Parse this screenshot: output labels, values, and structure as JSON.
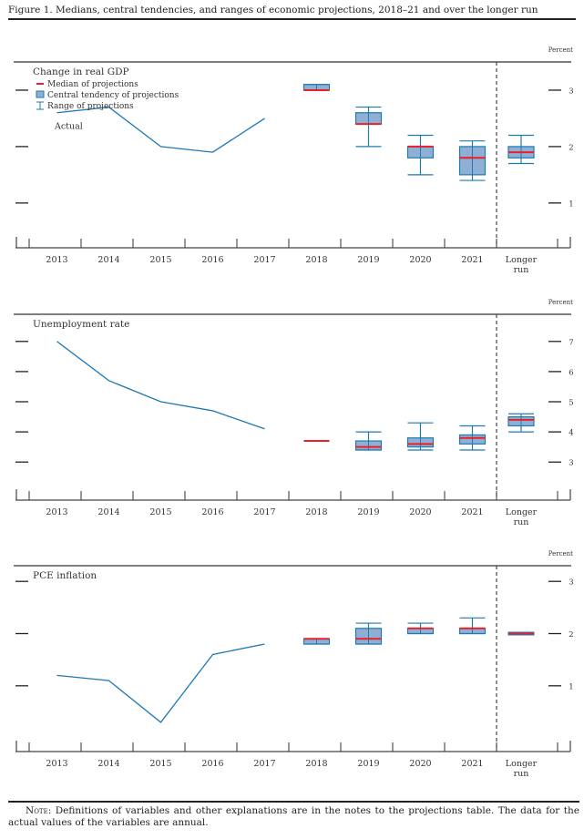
{
  "figure": {
    "title": "Figure 1. Medians, central tendencies, and ranges of economic projections, 2018–21 and over the longer run",
    "note_label": "Note:",
    "note_text": " Definitions of variables and other explanations are in the notes to the projections table. The data for the actual values of the variables are annual."
  },
  "colors": {
    "actual_line": "#1f77b4",
    "median": "#e8202a",
    "central_tendency_fill": "#8fb0d4",
    "central_tendency_stroke": "#1f7ab0",
    "range": "#1f7ab0"
  },
  "legend": {
    "median": "Median of projections",
    "central_tendency": "Central tendency of projections",
    "range": "Range of projections"
  },
  "chart_data": [
    {
      "type": "line+boxplot",
      "title": "Change in real GDP",
      "unit_label": "Percent",
      "categories": [
        "2013",
        "2014",
        "2015",
        "2016",
        "2017",
        "2018",
        "2019",
        "2020",
        "2021",
        "Longer run"
      ],
      "yticks": [
        1,
        2,
        3
      ],
      "ylim": [
        0.4,
        3.5
      ],
      "actual_label": "Actual",
      "actual": {
        "years": [
          "2013",
          "2014",
          "2015",
          "2016",
          "2017"
        ],
        "values": [
          2.6,
          2.7,
          2.0,
          1.9,
          2.5
        ]
      },
      "projections": [
        {
          "cat": "2018",
          "median": 3.0,
          "ct": [
            3.0,
            3.1
          ],
          "range": [
            3.0,
            3.1
          ]
        },
        {
          "cat": "2019",
          "median": 2.4,
          "ct": [
            2.4,
            2.6
          ],
          "range": [
            2.0,
            2.7
          ]
        },
        {
          "cat": "2020",
          "median": 2.0,
          "ct": [
            1.8,
            2.0
          ],
          "range": [
            1.5,
            2.2
          ]
        },
        {
          "cat": "2021",
          "median": 1.8,
          "ct": [
            1.5,
            2.0
          ],
          "range": [
            1.4,
            2.1
          ]
        },
        {
          "cat": "Longer run",
          "median": 1.9,
          "ct": [
            1.8,
            2.0
          ],
          "range": [
            1.7,
            2.2
          ]
        }
      ],
      "legend_placement": "top-left"
    },
    {
      "type": "line+boxplot",
      "title": "Unemployment rate",
      "unit_label": "Percent",
      "categories": [
        "2013",
        "2014",
        "2015",
        "2016",
        "2017",
        "2018",
        "2019",
        "2020",
        "2021",
        "Longer run"
      ],
      "yticks": [
        3,
        4,
        5,
        6,
        7
      ],
      "ylim": [
        2.1,
        7.9
      ],
      "actual": {
        "years": [
          "2013",
          "2014",
          "2015",
          "2016",
          "2017"
        ],
        "values": [
          7.0,
          5.7,
          5.0,
          4.7,
          4.1
        ]
      },
      "projections": [
        {
          "cat": "2018",
          "median": 3.7,
          "ct": [
            3.7,
            3.7
          ],
          "range": [
            3.7,
            3.7
          ]
        },
        {
          "cat": "2019",
          "median": 3.5,
          "ct": [
            3.4,
            3.7
          ],
          "range": [
            3.4,
            4.0
          ]
        },
        {
          "cat": "2020",
          "median": 3.6,
          "ct": [
            3.5,
            3.8
          ],
          "range": [
            3.4,
            4.3
          ]
        },
        {
          "cat": "2021",
          "median": 3.8,
          "ct": [
            3.6,
            3.9
          ],
          "range": [
            3.4,
            4.2
          ]
        },
        {
          "cat": "Longer run",
          "median": 4.4,
          "ct": [
            4.2,
            4.5
          ],
          "range": [
            4.0,
            4.6
          ]
        }
      ]
    },
    {
      "type": "line+boxplot",
      "title": "PCE inflation",
      "unit_label": "Percent",
      "categories": [
        "2013",
        "2014",
        "2015",
        "2016",
        "2017",
        "2018",
        "2019",
        "2020",
        "2021",
        "Longer run"
      ],
      "yticks": [
        1,
        2,
        3
      ],
      "ylim": [
        -0.05,
        3.3
      ],
      "actual": {
        "years": [
          "2013",
          "2014",
          "2015",
          "2016",
          "2017"
        ],
        "values": [
          1.2,
          1.1,
          0.3,
          1.6,
          1.8
        ]
      },
      "projections": [
        {
          "cat": "2018",
          "median": 1.9,
          "ct": [
            1.8,
            1.9
          ],
          "range": [
            1.8,
            1.9
          ]
        },
        {
          "cat": "2019",
          "median": 1.9,
          "ct": [
            1.8,
            2.1
          ],
          "range": [
            1.8,
            2.2
          ]
        },
        {
          "cat": "2020",
          "median": 2.1,
          "ct": [
            2.0,
            2.1
          ],
          "range": [
            2.0,
            2.2
          ]
        },
        {
          "cat": "2021",
          "median": 2.1,
          "ct": [
            2.0,
            2.1
          ],
          "range": [
            2.0,
            2.3
          ]
        },
        {
          "cat": "Longer run",
          "median": 2.0,
          "ct": [
            2.0,
            2.0
          ],
          "range": [
            2.0,
            2.0
          ]
        }
      ]
    }
  ]
}
